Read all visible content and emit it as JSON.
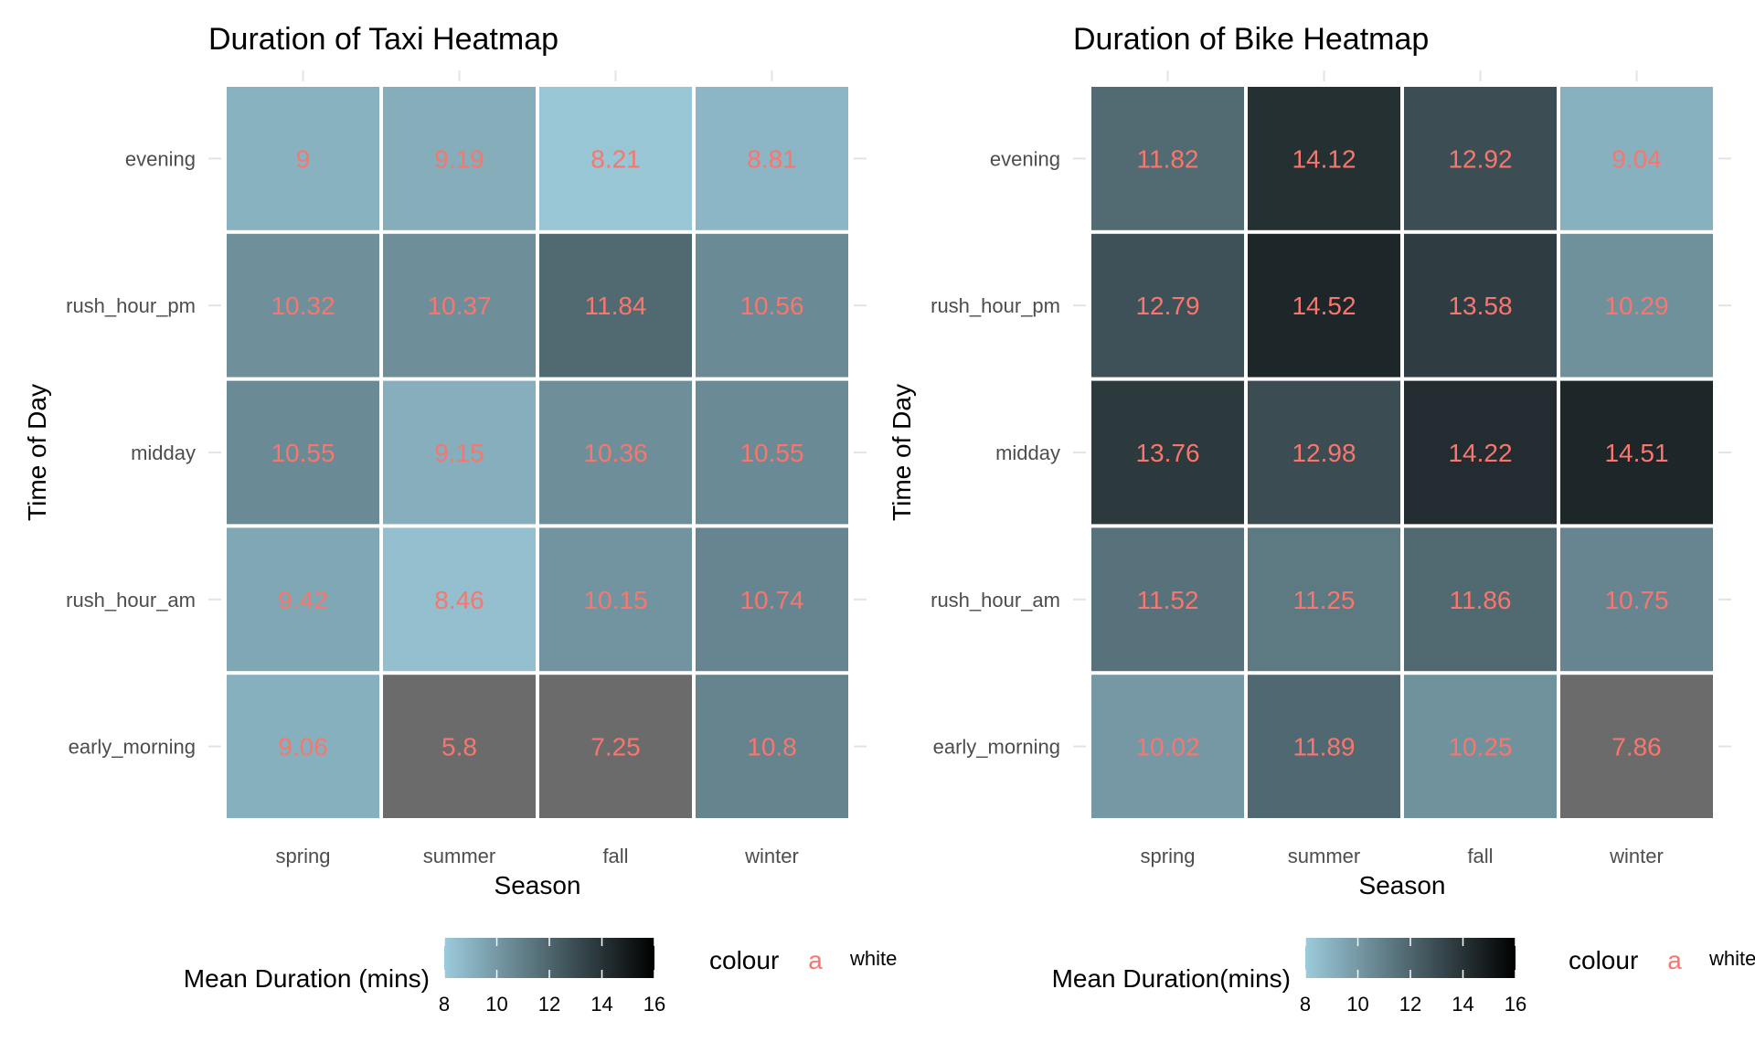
{
  "chart_data": [
    {
      "type": "heatmap",
      "title": "Duration of Taxi Heatmap",
      "xlabel": "Season",
      "ylabel": "Time of Day",
      "x_categories": [
        "spring",
        "summer",
        "fall",
        "winter"
      ],
      "y_categories": [
        "evening",
        "rush_hour_pm",
        "midday",
        "rush_hour_am",
        "early_morning"
      ],
      "values": [
        [
          9,
          9.19,
          8.21,
          8.81
        ],
        [
          10.32,
          10.37,
          11.84,
          10.56
        ],
        [
          10.55,
          9.15,
          10.36,
          10.55
        ],
        [
          9.42,
          8.46,
          10.15,
          10.74
        ],
        [
          9.06,
          5.8,
          7.25,
          10.8
        ]
      ],
      "labels": [
        [
          "9",
          "9.19",
          "8.21",
          "8.81"
        ],
        [
          "10.32",
          "10.37",
          "11.84",
          "10.56"
        ],
        [
          "10.55",
          "9.15",
          "10.36",
          "10.55"
        ],
        [
          "9.42",
          "8.46",
          "10.15",
          "10.74"
        ],
        [
          "9.06",
          "5.8",
          "7.25",
          "10.8"
        ]
      ],
      "color_scale": {
        "min": 8,
        "max": 16,
        "low_color": "#9ccbdb",
        "high_color": "#000000",
        "na_color": "#6b6b6b"
      },
      "legend": {
        "fill_title": "Mean Duration (mins)",
        "ticks": [
          "8",
          "10",
          "12",
          "14",
          "16"
        ],
        "colour_title": "colour",
        "colour_key": "a",
        "colour_label": "white",
        "placement": "bottom"
      }
    },
    {
      "type": "heatmap",
      "title": "Duration of Bike Heatmap",
      "xlabel": "Season",
      "ylabel": "Time of Day",
      "x_categories": [
        "spring",
        "summer",
        "fall",
        "winter"
      ],
      "y_categories": [
        "evening",
        "rush_hour_pm",
        "midday",
        "rush_hour_am",
        "early_morning"
      ],
      "values": [
        [
          11.82,
          14.12,
          12.92,
          9.04
        ],
        [
          12.79,
          14.52,
          13.58,
          10.29
        ],
        [
          13.76,
          12.98,
          14.22,
          14.51
        ],
        [
          11.52,
          11.25,
          11.86,
          10.75
        ],
        [
          10.02,
          11.89,
          10.25,
          7.86
        ]
      ],
      "labels": [
        [
          "11.82",
          "14.12",
          "12.92",
          "9.04"
        ],
        [
          "12.79",
          "14.52",
          "13.58",
          "10.29"
        ],
        [
          "13.76",
          "12.98",
          "14.22",
          "14.51"
        ],
        [
          "11.52",
          "11.25",
          "11.86",
          "10.75"
        ],
        [
          "10.02",
          "11.89",
          "10.25",
          "7.86"
        ]
      ],
      "color_scale": {
        "min": 8,
        "max": 16,
        "low_color": "#9ccbdb",
        "high_color": "#000000",
        "na_color": "#6b6b6b"
      },
      "legend": {
        "fill_title": "Mean Duration(mins)",
        "ticks": [
          "8",
          "10",
          "12",
          "14",
          "16"
        ],
        "colour_title": "colour",
        "colour_key": "a",
        "colour_label": "white",
        "placement": "bottom"
      }
    }
  ]
}
